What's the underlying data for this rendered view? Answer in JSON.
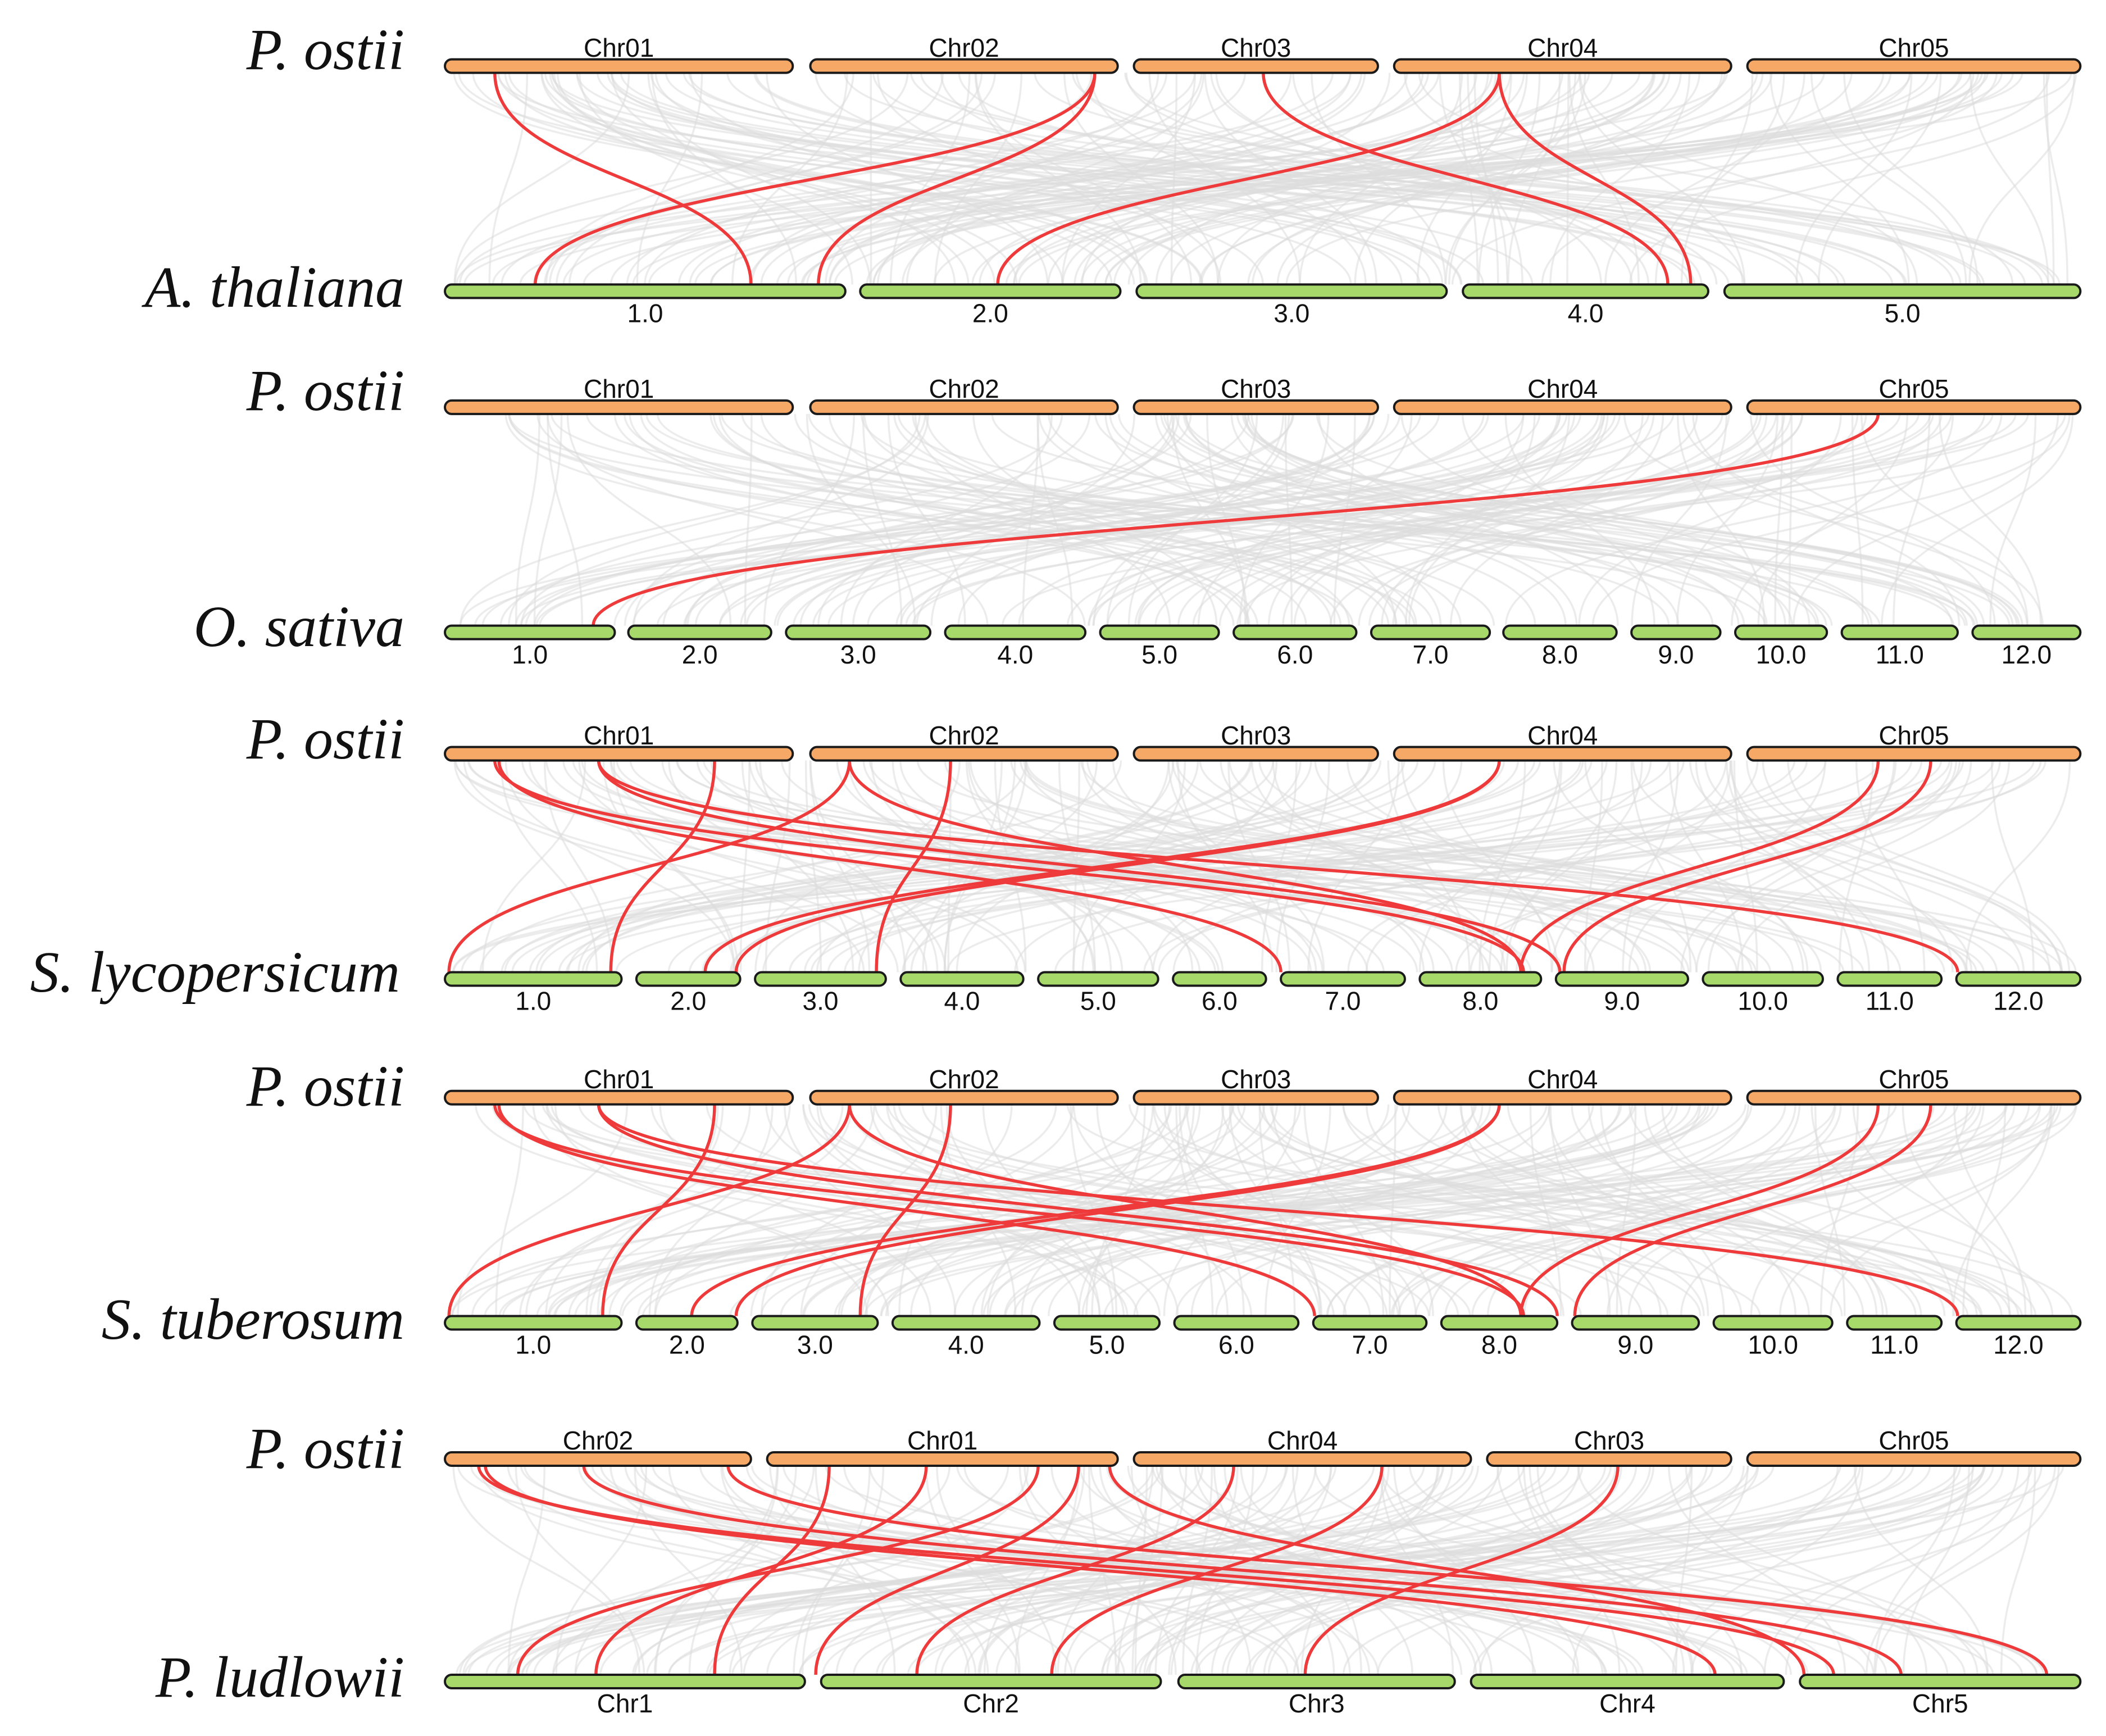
{
  "colors": {
    "query_chromosome": "#f6a866",
    "target_chromosome": "#a6d96a",
    "highlight_link": "#ee3a3a",
    "background_link": "#dddddd",
    "outline": "#1a1a1a"
  },
  "panels": [
    {
      "top_species": "P. ostii",
      "bottom_species": "A. thaliana",
      "top_chromosomes": [
        "Chr01",
        "Chr02",
        "Chr03",
        "Chr04",
        "Chr05"
      ],
      "bottom_chromosomes": [
        "1.0",
        "2.0",
        "3.0",
        "4.0",
        "5.0"
      ]
    },
    {
      "top_species": "P. ostii",
      "bottom_species": "O. sativa",
      "top_chromosomes": [
        "Chr01",
        "Chr02",
        "Chr03",
        "Chr04",
        "Chr05"
      ],
      "bottom_chromosomes": [
        "1.0",
        "2.0",
        "3.0",
        "4.0",
        "5.0",
        "6.0",
        "7.0",
        "8.0",
        "9.0",
        "10.0",
        "11.0",
        "12.0"
      ]
    },
    {
      "top_species": "P. ostii",
      "bottom_species": "S. lycopersicum",
      "top_chromosomes": [
        "Chr01",
        "Chr02",
        "Chr03",
        "Chr04",
        "Chr05"
      ],
      "bottom_chromosomes": [
        "1.0",
        "2.0",
        "3.0",
        "4.0",
        "5.0",
        "6.0",
        "7.0",
        "8.0",
        "9.0",
        "10.0",
        "11.0",
        "12.0"
      ]
    },
    {
      "top_species": "P. ostii",
      "bottom_species": "S. tuberosum",
      "top_chromosomes": [
        "Chr01",
        "Chr02",
        "Chr03",
        "Chr04",
        "Chr05"
      ],
      "bottom_chromosomes": [
        "1.0",
        "2.0",
        "3.0",
        "4.0",
        "5.0",
        "6.0",
        "7.0",
        "8.0",
        "9.0",
        "10.0",
        "11.0",
        "12.0"
      ]
    },
    {
      "top_species": "P. ostii",
      "bottom_species": "P. ludlowii",
      "top_chromosomes": [
        "Chr02",
        "Chr01",
        "Chr04",
        "Chr03",
        "Chr05"
      ],
      "bottom_chromosomes": [
        "Chr1",
        "Chr2",
        "Chr3",
        "Chr4",
        "Chr5"
      ]
    }
  ]
}
